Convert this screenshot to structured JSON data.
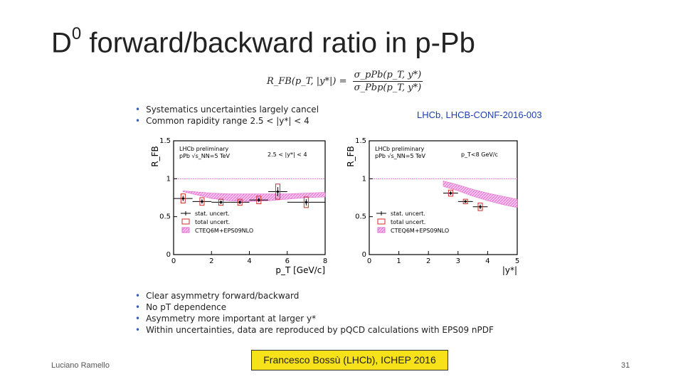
{
  "slide": {
    "title_main": "D",
    "title_sup": "0",
    "title_rest": " forward/backward ratio in p-Pb",
    "formula_lhs": "R_FB(p_T, |y*|) =",
    "formula_num": "σ_pPb(p_T, y*)",
    "formula_den": "σ_Pbp(p_T, y*)",
    "reference": "LHCb, LHCB-CONF-2016-003",
    "top_bullets": [
      "Systematics uncertainties largely cancel",
      "Common rapidity range 2.5 < |y*| < 4"
    ],
    "bottom_bullets": [
      "Clear asymmetry forward/backward",
      "No pT dependence",
      "Asymmetry more important at larger y*",
      "Within uncertainties, data are reproduced by pQCD calculations with EPS09 nPDF"
    ],
    "footer_left": "Luciano Ramello",
    "footer_center": "Francesco Bossù (LHCb), ICHEP 2016",
    "footer_right": "31"
  },
  "chart_data": [
    {
      "type": "scatter",
      "title": "LHCb preliminary",
      "subtitle": "pPb √s_NN=5 TeV",
      "cut_label": "2.5 < |y*| < 4",
      "xlabel": "p_T [GeV/c]",
      "ylabel": "R_FB",
      "xlim": [
        0,
        8
      ],
      "ylim": [
        0,
        1.5
      ],
      "xticks": [
        0,
        2,
        4,
        6,
        8
      ],
      "yticks": [
        0,
        0.5,
        1,
        1.5
      ],
      "legend": [
        "stat. uncert.",
        "total uncert.",
        "CTEQ6M+EPS09NLO"
      ],
      "legend_position": "bottom-left",
      "reference_line": 1.0,
      "colors": {
        "data": "#000000",
        "total_box": "#d42a2a",
        "band": "#e36fd0",
        "ref_line": "#e07ad8"
      },
      "x": [
        0.5,
        1.5,
        2.5,
        3.5,
        4.5,
        5.5,
        7.0
      ],
      "y": [
        0.74,
        0.7,
        0.69,
        0.69,
        0.72,
        0.83,
        0.69
      ],
      "xerr": [
        0.5,
        0.5,
        0.5,
        0.5,
        0.5,
        0.5,
        1.0
      ],
      "yerr_total": [
        0.06,
        0.05,
        0.04,
        0.04,
        0.05,
        0.1,
        0.07
      ],
      "band_x": [
        0.5,
        1.0,
        2.0,
        3.0,
        4.0,
        5.0,
        6.0,
        7.0,
        8.0
      ],
      "band_upper": [
        0.84,
        0.83,
        0.81,
        0.8,
        0.8,
        0.8,
        0.8,
        0.81,
        0.82
      ],
      "band_lower": [
        0.83,
        0.8,
        0.74,
        0.71,
        0.7,
        0.71,
        0.73,
        0.75,
        0.76
      ]
    },
    {
      "type": "scatter",
      "title": "LHCb preliminary",
      "subtitle": "pPb √s_NN=5 TeV",
      "cut_label": "p_T<8 GeV/c",
      "xlabel": "|y*|",
      "ylabel": "R_FB",
      "xlim": [
        0,
        5
      ],
      "ylim": [
        0,
        1.5
      ],
      "xticks": [
        0,
        1,
        2,
        3,
        4,
        5
      ],
      "yticks": [
        0,
        0.5,
        1,
        1.5
      ],
      "legend": [
        "stat. uncert.",
        "total uncert.",
        "CTEQ6M+EPS09NLO"
      ],
      "legend_position": "bottom-left",
      "reference_line": 1.0,
      "colors": {
        "data": "#000000",
        "total_box": "#d42a2a",
        "band": "#e36fd0",
        "ref_line": "#e07ad8"
      },
      "x": [
        2.75,
        3.25,
        3.75
      ],
      "y": [
        0.81,
        0.7,
        0.63
      ],
      "xerr": [
        0.25,
        0.25,
        0.25
      ],
      "yerr_total": [
        0.04,
        0.03,
        0.05
      ],
      "band_x": [
        2.5,
        3.0,
        3.5,
        4.0,
        4.5,
        5.0
      ],
      "band_upper": [
        0.97,
        0.92,
        0.86,
        0.81,
        0.77,
        0.73
      ],
      "band_lower": [
        0.9,
        0.84,
        0.77,
        0.71,
        0.66,
        0.62
      ]
    }
  ]
}
